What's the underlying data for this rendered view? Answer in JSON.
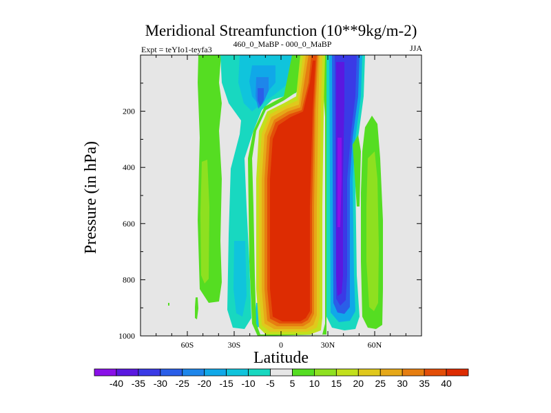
{
  "chart_data": {
    "type": "heatmap",
    "title": "Meridional Streamfunction (10**9kg/m-2)",
    "subtitle_left": "Expt = teYIo1-teyfa3",
    "subtitle_center": "460_0_MaBP - 000_0_MaBP",
    "subtitle_right": "JJA",
    "xlabel": "Latitude",
    "ylabel": "Pressure (in hPa)",
    "xlim": [
      -90,
      90
    ],
    "ylim": [
      1000,
      0
    ],
    "x_ticks": [
      -60,
      -30,
      0,
      30,
      60
    ],
    "x_tick_labels": [
      "60S",
      "30S",
      "0",
      "30N",
      "60N"
    ],
    "y_ticks": [
      200,
      400,
      600,
      800,
      1000
    ],
    "y_tick_labels": [
      "200",
      "400",
      "600",
      "800",
      "1000"
    ],
    "colorbar_labels": [
      "-40",
      "-35",
      "-30",
      "-25",
      "-20",
      "-15",
      "-10",
      "-5",
      "5",
      "10",
      "15",
      "20",
      "25",
      "30",
      "35",
      "40"
    ],
    "colorbar_colors": [
      "#8a10e8",
      "#5a18e0",
      "#3a3ae6",
      "#2a5ee8",
      "#1e86ea",
      "#10a8e8",
      "#10c4dc",
      "#18d8c0",
      "#e6e6e6",
      "#55dd22",
      "#8ee020",
      "#c2e01c",
      "#e0c81c",
      "#e6a818",
      "#e67e10",
      "#e34e08",
      "#dd2c02"
    ],
    "features": [
      {
        "name": "main-positive-cell",
        "level": 40,
        "lat_range": [
          -15,
          27
        ],
        "p_range": [
          90,
          990
        ]
      },
      {
        "name": "deep-negative-cell",
        "level": -40,
        "lat_range": [
          31,
          44
        ],
        "p_range": [
          0,
          980
        ]
      },
      {
        "name": "southern-negative-band",
        "level": -10,
        "lat_range": [
          -32,
          -10
        ],
        "p_range": [
          0,
          975
        ]
      },
      {
        "name": "southern-positive-band",
        "level": 10,
        "lat_range": [
          -52,
          -40
        ],
        "p_range": [
          0,
          860
        ]
      },
      {
        "name": "northern-positive-band",
        "level": 10,
        "lat_range": [
          52,
          64
        ],
        "p_range": [
          180,
          975
        ]
      }
    ]
  }
}
